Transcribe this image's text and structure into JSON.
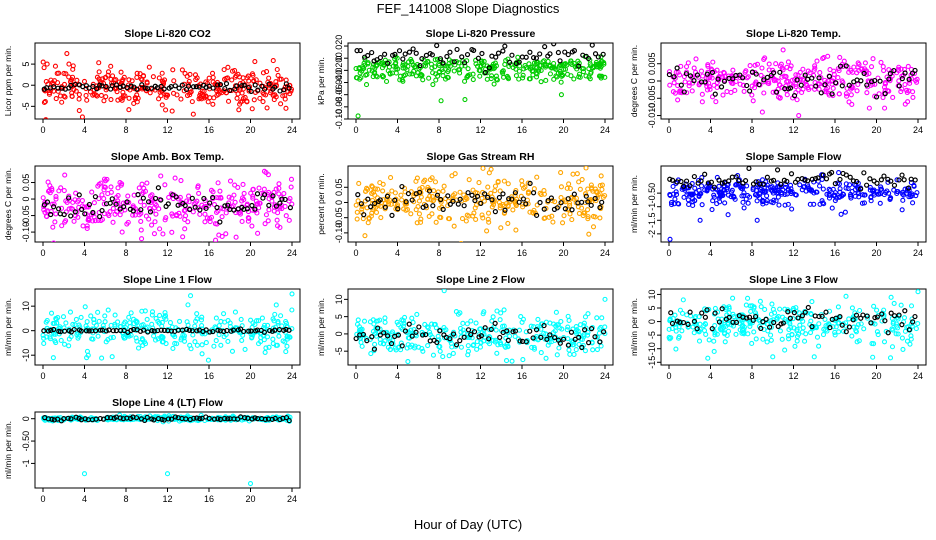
{
  "title": "FEF_141008  Slope Diagnostics",
  "xlabel": "Hour of Day (UTC)",
  "chart_data": [
    {
      "type": "scatter",
      "title": "Slope Li-820 CO2",
      "ylabel": "Licor ppm per min.",
      "xlim": [
        0,
        24
      ],
      "xticks": [
        0,
        4,
        8,
        12,
        16,
        20,
        24
      ],
      "ylim": [
        -8,
        10
      ],
      "yticks": [
        -5,
        0,
        5
      ],
      "color": "#ff0000",
      "center": -0.5,
      "spread": 2.2,
      "black_spread": 0.4,
      "outliers": [
        [
          1.2,
          4.5
        ],
        [
          2.3,
          7.5
        ],
        [
          0.4,
          5
        ],
        [
          3.8,
          -7.5
        ],
        [
          2.5,
          5
        ],
        [
          3.5,
          -6
        ]
      ]
    },
    {
      "type": "scatter",
      "title": "Slope Li-820 Pressure",
      "ylabel": "kPa per min.",
      "xlim": [
        0,
        24
      ],
      "xticks": [
        0,
        4,
        8,
        12,
        16,
        20,
        24
      ],
      "ylim": [
        -0.1,
        0.025
      ],
      "yticks": [
        -0.1,
        -0.08,
        -0.06,
        -0.04,
        -0.02,
        0.0,
        0.02
      ],
      "color": "#00cc00",
      "center": -0.01,
      "spread": 0.006,
      "black_spread": 0.01,
      "black_center": 0.005,
      "outliers": [
        [
          0.2,
          -0.095
        ],
        [
          8.2,
          -0.07
        ],
        [
          10.5,
          -0.068
        ],
        [
          19.8,
          -0.06
        ]
      ]
    },
    {
      "type": "scatter",
      "title": "Slope Li-820 Temp.",
      "ylabel": "degrees C per min.",
      "xlim": [
        0,
        24
      ],
      "xticks": [
        0,
        4,
        8,
        12,
        16,
        20,
        24
      ],
      "ylim": [
        -0.011,
        0.011
      ],
      "yticks": [
        -0.01,
        -0.005,
        0.0,
        0.005
      ],
      "color": "#ff00ff",
      "center": 0.0,
      "spread": 0.003,
      "black_spread": 0.002,
      "outliers": [
        [
          9,
          -0.009
        ],
        [
          12.5,
          -0.01
        ],
        [
          11,
          0.009
        ]
      ]
    },
    {
      "type": "scatter",
      "title": "Slope Amb. Box Temp.",
      "ylabel": "degrees C per min.",
      "xlim": [
        0,
        24
      ],
      "xticks": [
        0,
        4,
        8,
        12,
        16,
        20,
        24
      ],
      "ylim": [
        -0.13,
        0.1
      ],
      "yticks": [
        -0.1,
        -0.05,
        0.0,
        0.05
      ],
      "color": "#ff00ff",
      "center": -0.02,
      "spread": 0.04,
      "black_spread": 0.02,
      "outliers": [
        [
          9.5,
          -0.12
        ],
        [
          21.5,
          0.08
        ]
      ]
    },
    {
      "type": "scatter",
      "title": "Slope Gas Stream RH",
      "ylabel": "percent per min.",
      "xlim": [
        0,
        24
      ],
      "xticks": [
        0,
        4,
        8,
        12,
        16,
        20,
        24
      ],
      "ylim": [
        -0.13,
        0.12
      ],
      "yticks": [
        -0.1,
        -0.05,
        0.0,
        0.05
      ],
      "color": "#ffa500",
      "center": 0.0,
      "spread": 0.045,
      "black_spread": 0.02,
      "outliers": []
    },
    {
      "type": "scatter",
      "title": "Slope Sample Flow",
      "ylabel": "ml/min per min.",
      "xlim": [
        0,
        24
      ],
      "xticks": [
        0,
        4,
        8,
        12,
        16,
        20,
        24
      ],
      "ylim": [
        -2.3,
        0.5
      ],
      "yticks": [
        -2.0,
        -1.5,
        -1.0,
        -0.5
      ],
      "color": "#0000ff",
      "center": -0.45,
      "spread": 0.25,
      "black_spread": 0.15,
      "black_center": 0.0,
      "outliers": [
        [
          0.1,
          -2.2
        ],
        [
          3,
          -1.5
        ],
        [
          8.5,
          -1.5
        ],
        [
          17,
          -1.2
        ]
      ]
    },
    {
      "type": "scatter",
      "title": "Slope Line 1 Flow",
      "ylabel": "ml/min per min.",
      "xlim": [
        0,
        24
      ],
      "xticks": [
        0,
        4,
        8,
        12,
        16,
        20,
        24
      ],
      "ylim": [
        -14,
        17
      ],
      "yticks": [
        -10,
        0,
        10
      ],
      "color": "#00ffff",
      "center": 0.0,
      "spread": 4,
      "black_spread": 0.3,
      "outliers": [
        [
          24,
          15
        ],
        [
          4.2,
          -11
        ],
        [
          1,
          -11
        ]
      ]
    },
    {
      "type": "scatter",
      "title": "Slope Line 2 Flow",
      "ylabel": "ml/min per min.",
      "xlim": [
        0,
        24
      ],
      "xticks": [
        0,
        4,
        8,
        12,
        16,
        20,
        24
      ],
      "ylim": [
        -9,
        13
      ],
      "yticks": [
        -5,
        0,
        5,
        10
      ],
      "color": "#00ffff",
      "center": -0.5,
      "spread": 3,
      "black_spread": 2,
      "outliers": [
        [
          8.5,
          12.5
        ],
        [
          24,
          10
        ],
        [
          5,
          -8
        ]
      ]
    },
    {
      "type": "scatter",
      "title": "Slope Line 3 Flow",
      "ylabel": "ml/min per min.",
      "xlim": [
        0,
        24
      ],
      "xticks": [
        0,
        4,
        8,
        12,
        16,
        20,
        24
      ],
      "ylim": [
        -16,
        12
      ],
      "yticks": [
        -15,
        -10,
        -5,
        0,
        5,
        10
      ],
      "color": "#00ffff",
      "center": -1,
      "spread": 4,
      "black_spread": 2,
      "black_center": 1,
      "outliers": [
        [
          24,
          11
        ],
        [
          10,
          -13
        ],
        [
          14,
          -13
        ]
      ]
    },
    {
      "type": "scatter",
      "title": "Slope Line 4 (LT) Flow",
      "ylabel": "ml/min per min.",
      "xlim": [
        0,
        24
      ],
      "xticks": [
        0,
        4,
        8,
        12,
        16,
        20,
        24
      ],
      "ylim": [
        -1.55,
        0.15
      ],
      "yticks": [
        -1.0,
        -0.5,
        0.0
      ],
      "color": "#00ffff",
      "center": 0.0,
      "spread": 0.025,
      "black_spread": 0.02,
      "outliers": [
        [
          4,
          -1.23
        ],
        [
          12,
          -1.23
        ],
        [
          20,
          -1.45
        ]
      ]
    }
  ]
}
